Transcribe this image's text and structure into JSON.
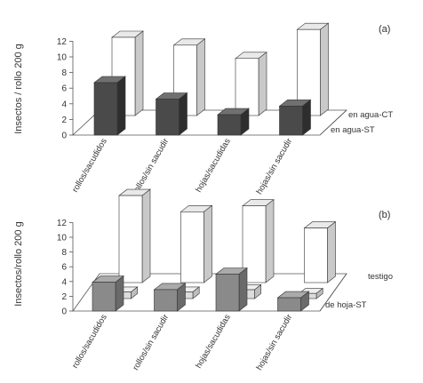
{
  "colors": {
    "dark_front": "#4a4a4a",
    "dark_top": "#707070",
    "dark_side": "#2e2e2e",
    "mid_front": "#8a8a8a",
    "mid_top": "#aaaaaa",
    "mid_side": "#6a6a6a",
    "light_front": "#ffffff",
    "light_top": "#e9e9e9",
    "light_side": "#c9c9c9",
    "tiny_front": "#dcdcdc",
    "tiny_top": "#eeeeee",
    "tiny_side": "#bdbdbd",
    "axis": "#555555"
  },
  "chart_data": [
    {
      "type": "bar",
      "panel_label": "(a)",
      "ylabel": "Insectos / rollo 200 g",
      "ylim": [
        0,
        12
      ],
      "yticks": [
        0,
        2,
        4,
        6,
        8,
        10,
        12
      ],
      "categories": [
        "rollos/sacudidos",
        "rollos/sin sacudir",
        "hojas/sacudidas",
        "hojas/sin sacudir"
      ],
      "series": [
        {
          "name": "en agua-ST",
          "values": [
            6.7,
            4.6,
            2.6,
            3.7
          ]
        },
        {
          "name": "en agua-CT",
          "values": [
            10.0,
            9.0,
            7.3,
            11.0
          ]
        }
      ]
    },
    {
      "type": "bar",
      "panel_label": "(b)",
      "ylabel": "Insectos/rollo 200 g",
      "ylim": [
        0,
        12
      ],
      "yticks": [
        0,
        2,
        4,
        6,
        8,
        10,
        12
      ],
      "categories": [
        "rollos/sacudidos",
        "rollos/sin sacudir",
        "hojas/sacudidas",
        "hojas/sin sacudir"
      ],
      "series": [
        {
          "name": "de hoja-ST",
          "values": [
            3.9,
            2.9,
            5.0,
            1.8
          ]
        },
        {
          "name": "testigo",
          "values": [
            0.9,
            0.9,
            1.2,
            0.7
          ]
        }
      ],
      "back_series_values": [
        11.8,
        9.6,
        10.4,
        7.4
      ]
    }
  ]
}
